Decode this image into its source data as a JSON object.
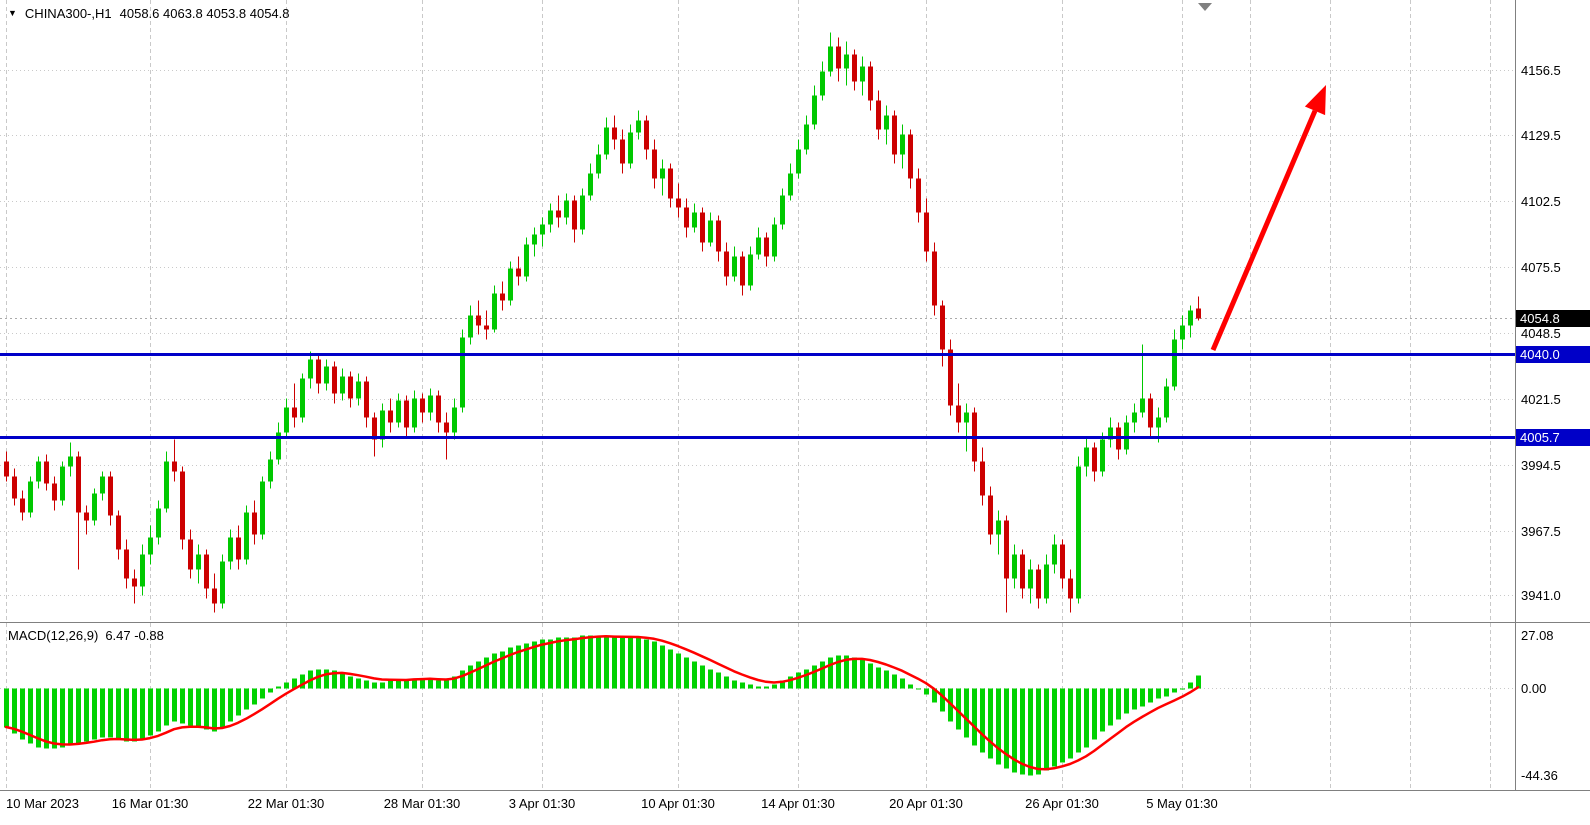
{
  "title": {
    "symbol_period": "CHINA300-,H1",
    "ohlc": "4058.6 4063.8 4053.8 4054.8"
  },
  "price_axis": {
    "current_price": "4054.8",
    "current_price_value": 4054.8
  },
  "hlines": [
    {
      "price": 4040.0,
      "label": "4040.0"
    },
    {
      "price": 4005.7,
      "label": "4005.7"
    }
  ],
  "macd_panel": {
    "label": "MACD(12,26,9)",
    "values_text": "6.47 -0.88"
  },
  "colors": {
    "bull": "#00C800",
    "bear": "#CC0000",
    "macd_histogram": "#00D200",
    "signal_line": "#FF0000",
    "hline": "#0000C8",
    "grid": "#C9C9C9",
    "separator": "#808080",
    "axis_text": "#000000",
    "tag_current_bg": "#000000",
    "tag_line_bg": "#0000C8",
    "tag_text": "#FFFFFF",
    "arrow": "#FF0000",
    "shift_marker": "#808080",
    "current_price_line": "#AAAAAA"
  },
  "chart_data": [
    {
      "type": "candlestick",
      "symbol": "CHINA300-",
      "timeframe": "H1",
      "last_ohlc": {
        "open": 4058.6,
        "high": 4063.8,
        "low": 4053.8,
        "close": 4054.8
      },
      "y_tick_labels": [
        "4156.5",
        "4129.5",
        "4102.5",
        "4075.5",
        "4048.5",
        "4021.5",
        "3994.5",
        "3967.5",
        "3941.0"
      ],
      "y_tick_values": [
        4156.5,
        4129.5,
        4102.5,
        4075.5,
        4048.5,
        4021.5,
        3994.5,
        3967.5,
        3941.0
      ],
      "horizontal_lines": [
        4040.0,
        4005.7
      ],
      "ylim": [
        3920,
        4185
      ],
      "x_tick_labels": [
        {
          "label": "10 Mar 2023",
          "i": 0
        },
        {
          "label": "16 Mar 01:30",
          "i": 18
        },
        {
          "label": "22 Mar 01:30",
          "i": 35
        },
        {
          "label": "28 Mar 01:30",
          "i": 52
        },
        {
          "label": "3 Apr 01:30",
          "i": 67
        },
        {
          "label": "10 Apr 01:30",
          "i": 84
        },
        {
          "label": "14 Apr 01:30",
          "i": 99
        },
        {
          "label": "20 Apr 01:30",
          "i": 115
        },
        {
          "label": "26 Apr 01:30",
          "i": 132
        },
        {
          "label": "5 May 01:30",
          "i": 147
        }
      ],
      "candles": [
        [
          3996,
          4000,
          3988,
          3990
        ],
        [
          3990,
          3993,
          3978,
          3981
        ],
        [
          3981,
          3984,
          3972,
          3975
        ],
        [
          3975,
          3990,
          3973,
          3988
        ],
        [
          3988,
          3998,
          3985,
          3996
        ],
        [
          3996,
          3999,
          3984,
          3987
        ],
        [
          3987,
          3990,
          3976,
          3980
        ],
        [
          3980,
          3996,
          3978,
          3994
        ],
        [
          3994,
          4004,
          3990,
          3998
        ],
        [
          3998,
          4000,
          3952,
          3975
        ],
        [
          3975,
          3978,
          3966,
          3972
        ],
        [
          3972,
          3985,
          3970,
          3983
        ],
        [
          3983,
          3992,
          3980,
          3990
        ],
        [
          3990,
          3992,
          3970,
          3974
        ],
        [
          3974,
          3976,
          3956,
          3960
        ],
        [
          3960,
          3964,
          3944,
          3948
        ],
        [
          3948,
          3952,
          3938,
          3945
        ],
        [
          3945,
          3962,
          3941,
          3958
        ],
        [
          3958,
          3970,
          3954,
          3965
        ],
        [
          3965,
          3980,
          3962,
          3977
        ],
        [
          3977,
          4000,
          3975,
          3996
        ],
        [
          3996,
          4005,
          3988,
          3992
        ],
        [
          3992,
          3994,
          3960,
          3964
        ],
        [
          3964,
          3968,
          3948,
          3952
        ],
        [
          3952,
          3962,
          3946,
          3958
        ],
        [
          3958,
          3960,
          3940,
          3944
        ],
        [
          3944,
          3950,
          3934,
          3938
        ],
        [
          3938,
          3958,
          3936,
          3955
        ],
        [
          3955,
          3968,
          3952,
          3965
        ],
        [
          3965,
          3970,
          3952,
          3956
        ],
        [
          3956,
          3978,
          3954,
          3975
        ],
        [
          3975,
          3980,
          3962,
          3966
        ],
        [
          3966,
          3990,
          3964,
          3988
        ],
        [
          3988,
          4000,
          3985,
          3997
        ],
        [
          3997,
          4012,
          3995,
          4008
        ],
        [
          4008,
          4022,
          4006,
          4018
        ],
        [
          4018,
          4028,
          4010,
          4014
        ],
        [
          4014,
          4032,
          4012,
          4030
        ],
        [
          4030,
          4041,
          4026,
          4038
        ],
        [
          4038,
          4040,
          4024,
          4028
        ],
        [
          4028,
          4038,
          4025,
          4035
        ],
        [
          4035,
          4037,
          4020,
          4024
        ],
        [
          4024,
          4034,
          4021,
          4031
        ],
        [
          4031,
          4033,
          4018,
          4022
        ],
        [
          4022,
          4032,
          4019,
          4029
        ],
        [
          4029,
          4031,
          4010,
          4014
        ],
        [
          4014,
          4016,
          3998,
          4005
        ],
        [
          4005,
          4020,
          4002,
          4017
        ],
        [
          4017,
          4022,
          4008,
          4012
        ],
        [
          4012,
          4024,
          4010,
          4021
        ],
        [
          4021,
          4023,
          4006,
          4010
        ],
        [
          4010,
          4025,
          4008,
          4022
        ],
        [
          4022,
          4024,
          4012,
          4016
        ],
        [
          4016,
          4026,
          4013,
          4023
        ],
        [
          4023,
          4025,
          4008,
          4012
        ],
        [
          4012,
          4016,
          3997,
          4008
        ],
        [
          4008,
          4022,
          4005,
          4018
        ],
        [
          4018,
          4050,
          4016,
          4047
        ],
        [
          4047,
          4060,
          4044,
          4056
        ],
        [
          4056,
          4062,
          4048,
          4052
        ],
        [
          4052,
          4058,
          4046,
          4050
        ],
        [
          4050,
          4068,
          4049,
          4065
        ],
        [
          4065,
          4070,
          4058,
          4062
        ],
        [
          4062,
          4078,
          4060,
          4075
        ],
        [
          4075,
          4080,
          4068,
          4072
        ],
        [
          4072,
          4088,
          4070,
          4085
        ],
        [
          4085,
          4092,
          4080,
          4089
        ],
        [
          4089,
          4096,
          4084,
          4093
        ],
        [
          4093,
          4102,
          4090,
          4099
        ],
        [
          4099,
          4105,
          4092,
          4096
        ],
        [
          4096,
          4106,
          4093,
          4103
        ],
        [
          4103,
          4105,
          4086,
          4091
        ],
        [
          4091,
          4108,
          4089,
          4105
        ],
        [
          4105,
          4118,
          4103,
          4114
        ],
        [
          4114,
          4126,
          4112,
          4122
        ],
        [
          4122,
          4137,
          4120,
          4133
        ],
        [
          4133,
          4138,
          4124,
          4128
        ],
        [
          4128,
          4132,
          4114,
          4118
        ],
        [
          4118,
          4134,
          4116,
          4131
        ],
        [
          4131,
          4140,
          4128,
          4136
        ],
        [
          4136,
          4138,
          4120,
          4124
        ],
        [
          4124,
          4128,
          4108,
          4112
        ],
        [
          4112,
          4120,
          4105,
          4116
        ],
        [
          4116,
          4118,
          4100,
          4104
        ],
        [
          4104,
          4110,
          4096,
          4100
        ],
        [
          4100,
          4104,
          4088,
          4092
        ],
        [
          4092,
          4102,
          4090,
          4098
        ],
        [
          4098,
          4100,
          4082,
          4086
        ],
        [
          4086,
          4098,
          4084,
          4095
        ],
        [
          4095,
          4097,
          4078,
          4082
        ],
        [
          4082,
          4086,
          4068,
          4072
        ],
        [
          4072,
          4084,
          4070,
          4080
        ],
        [
          4080,
          4082,
          4064,
          4068
        ],
        [
          4068,
          4084,
          4066,
          4081
        ],
        [
          4081,
          4092,
          4079,
          4088
        ],
        [
          4088,
          4090,
          4076,
          4080
        ],
        [
          4080,
          4096,
          4078,
          4093
        ],
        [
          4093,
          4108,
          4091,
          4105
        ],
        [
          4105,
          4118,
          4103,
          4114
        ],
        [
          4114,
          4128,
          4112,
          4124
        ],
        [
          4124,
          4138,
          4122,
          4134
        ],
        [
          4134,
          4150,
          4132,
          4146
        ],
        [
          4146,
          4160,
          4144,
          4156
        ],
        [
          4156,
          4172,
          4154,
          4166
        ],
        [
          4166,
          4170,
          4152,
          4157
        ],
        [
          4157,
          4168,
          4150,
          4163
        ],
        [
          4163,
          4165,
          4148,
          4152
        ],
        [
          4152,
          4162,
          4146,
          4158
        ],
        [
          4158,
          4160,
          4140,
          4144
        ],
        [
          4144,
          4148,
          4128,
          4132
        ],
        [
          4132,
          4142,
          4126,
          4138
        ],
        [
          4138,
          4140,
          4118,
          4122
        ],
        [
          4122,
          4134,
          4116,
          4130
        ],
        [
          4130,
          4132,
          4108,
          4112
        ],
        [
          4112,
          4116,
          4094,
          4098
        ],
        [
          4098,
          4104,
          4078,
          4082
        ],
        [
          4082,
          4086,
          4056,
          4060
        ],
        [
          4060,
          4062,
          4035,
          4042
        ],
        [
          4042,
          4046,
          4015,
          4019
        ],
        [
          4019,
          4028,
          4008,
          4012
        ],
        [
          4012,
          4020,
          4000,
          4016
        ],
        [
          4016,
          4018,
          3992,
          3996
        ],
        [
          3996,
          4002,
          3978,
          3982
        ],
        [
          3982,
          3986,
          3962,
          3966
        ],
        [
          3966,
          3976,
          3958,
          3972
        ],
        [
          3972,
          3974,
          3934,
          3948
        ],
        [
          3948,
          3962,
          3944,
          3958
        ],
        [
          3958,
          3960,
          3940,
          3944
        ],
        [
          3944,
          3956,
          3938,
          3952
        ],
        [
          3952,
          3954,
          3936,
          3940
        ],
        [
          3940,
          3958,
          3938,
          3954
        ],
        [
          3954,
          3966,
          3950,
          3962
        ],
        [
          3962,
          3964,
          3944,
          3948
        ],
        [
          3948,
          3952,
          3934,
          3940
        ],
        [
          3940,
          3998,
          3938,
          3994
        ],
        [
          3994,
          4006,
          3990,
          4002
        ],
        [
          4002,
          4004,
          3988,
          3992
        ],
        [
          3992,
          4008,
          3990,
          4005
        ],
        [
          4005,
          4014,
          4002,
          4010
        ],
        [
          4010,
          4012,
          3997,
          4001
        ],
        [
          4001,
          4015,
          3999,
          4012
        ],
        [
          4012,
          4020,
          4008,
          4016
        ],
        [
          4016,
          4044,
          4014,
          4022
        ],
        [
          4022,
          4024,
          4006,
          4010
        ],
        [
          4010,
          4018,
          4004,
          4014
        ],
        [
          4014,
          4030,
          4012,
          4027
        ],
        [
          4027,
          4050,
          4025,
          4046
        ],
        [
          4046,
          4056,
          4042,
          4052
        ],
        [
          4052,
          4060,
          4047,
          4058
        ],
        [
          4058.6,
          4063.8,
          4053.8,
          4054.8
        ]
      ]
    },
    {
      "type": "bar",
      "name": "MACD(12,26,9)",
      "last_macd": 6.47,
      "last_signal": -0.88,
      "y_tick_labels": [
        "27.08",
        "0.00",
        "-44.36"
      ],
      "y_tick_values": [
        27.08,
        0,
        -44.36
      ],
      "ylim": [
        -44.36,
        27.08
      ],
      "values": [
        -20,
        -23,
        -26,
        -28,
        -30,
        -31,
        -31,
        -30,
        -29,
        -28,
        -27,
        -26,
        -25,
        -25,
        -26,
        -27,
        -27,
        -26,
        -24,
        -22,
        -19,
        -17,
        -18,
        -19,
        -20,
        -21,
        -22,
        -20,
        -17,
        -14,
        -11,
        -8,
        -5,
        -2,
        1,
        3,
        5,
        7,
        9,
        10,
        10,
        9,
        8,
        6,
        5,
        4,
        3,
        3,
        4,
        4,
        4,
        5,
        5,
        5,
        4,
        4,
        6,
        9,
        12,
        14,
        16,
        18,
        19,
        21,
        22,
        23,
        24,
        25,
        25,
        26,
        26,
        26,
        27,
        27,
        27.08,
        27,
        26,
        26,
        26,
        26,
        25,
        24,
        22,
        20,
        18,
        16,
        14,
        12,
        10,
        8,
        6,
        4,
        3,
        2,
        1,
        1,
        2,
        4,
        6,
        8,
        10,
        12,
        14,
        16,
        17,
        17,
        16,
        15,
        13,
        11,
        9,
        7,
        5,
        2,
        0,
        -3,
        -7,
        -12,
        -17,
        -21,
        -25,
        -29,
        -33,
        -36,
        -39,
        -41,
        -43,
        -44,
        -44.36,
        -44,
        -42,
        -40,
        -38,
        -36,
        -33,
        -30,
        -26,
        -22,
        -19,
        -16,
        -13,
        -11,
        -9,
        -7,
        -5,
        -4,
        -2,
        0,
        3,
        6.47
      ]
    }
  ]
}
